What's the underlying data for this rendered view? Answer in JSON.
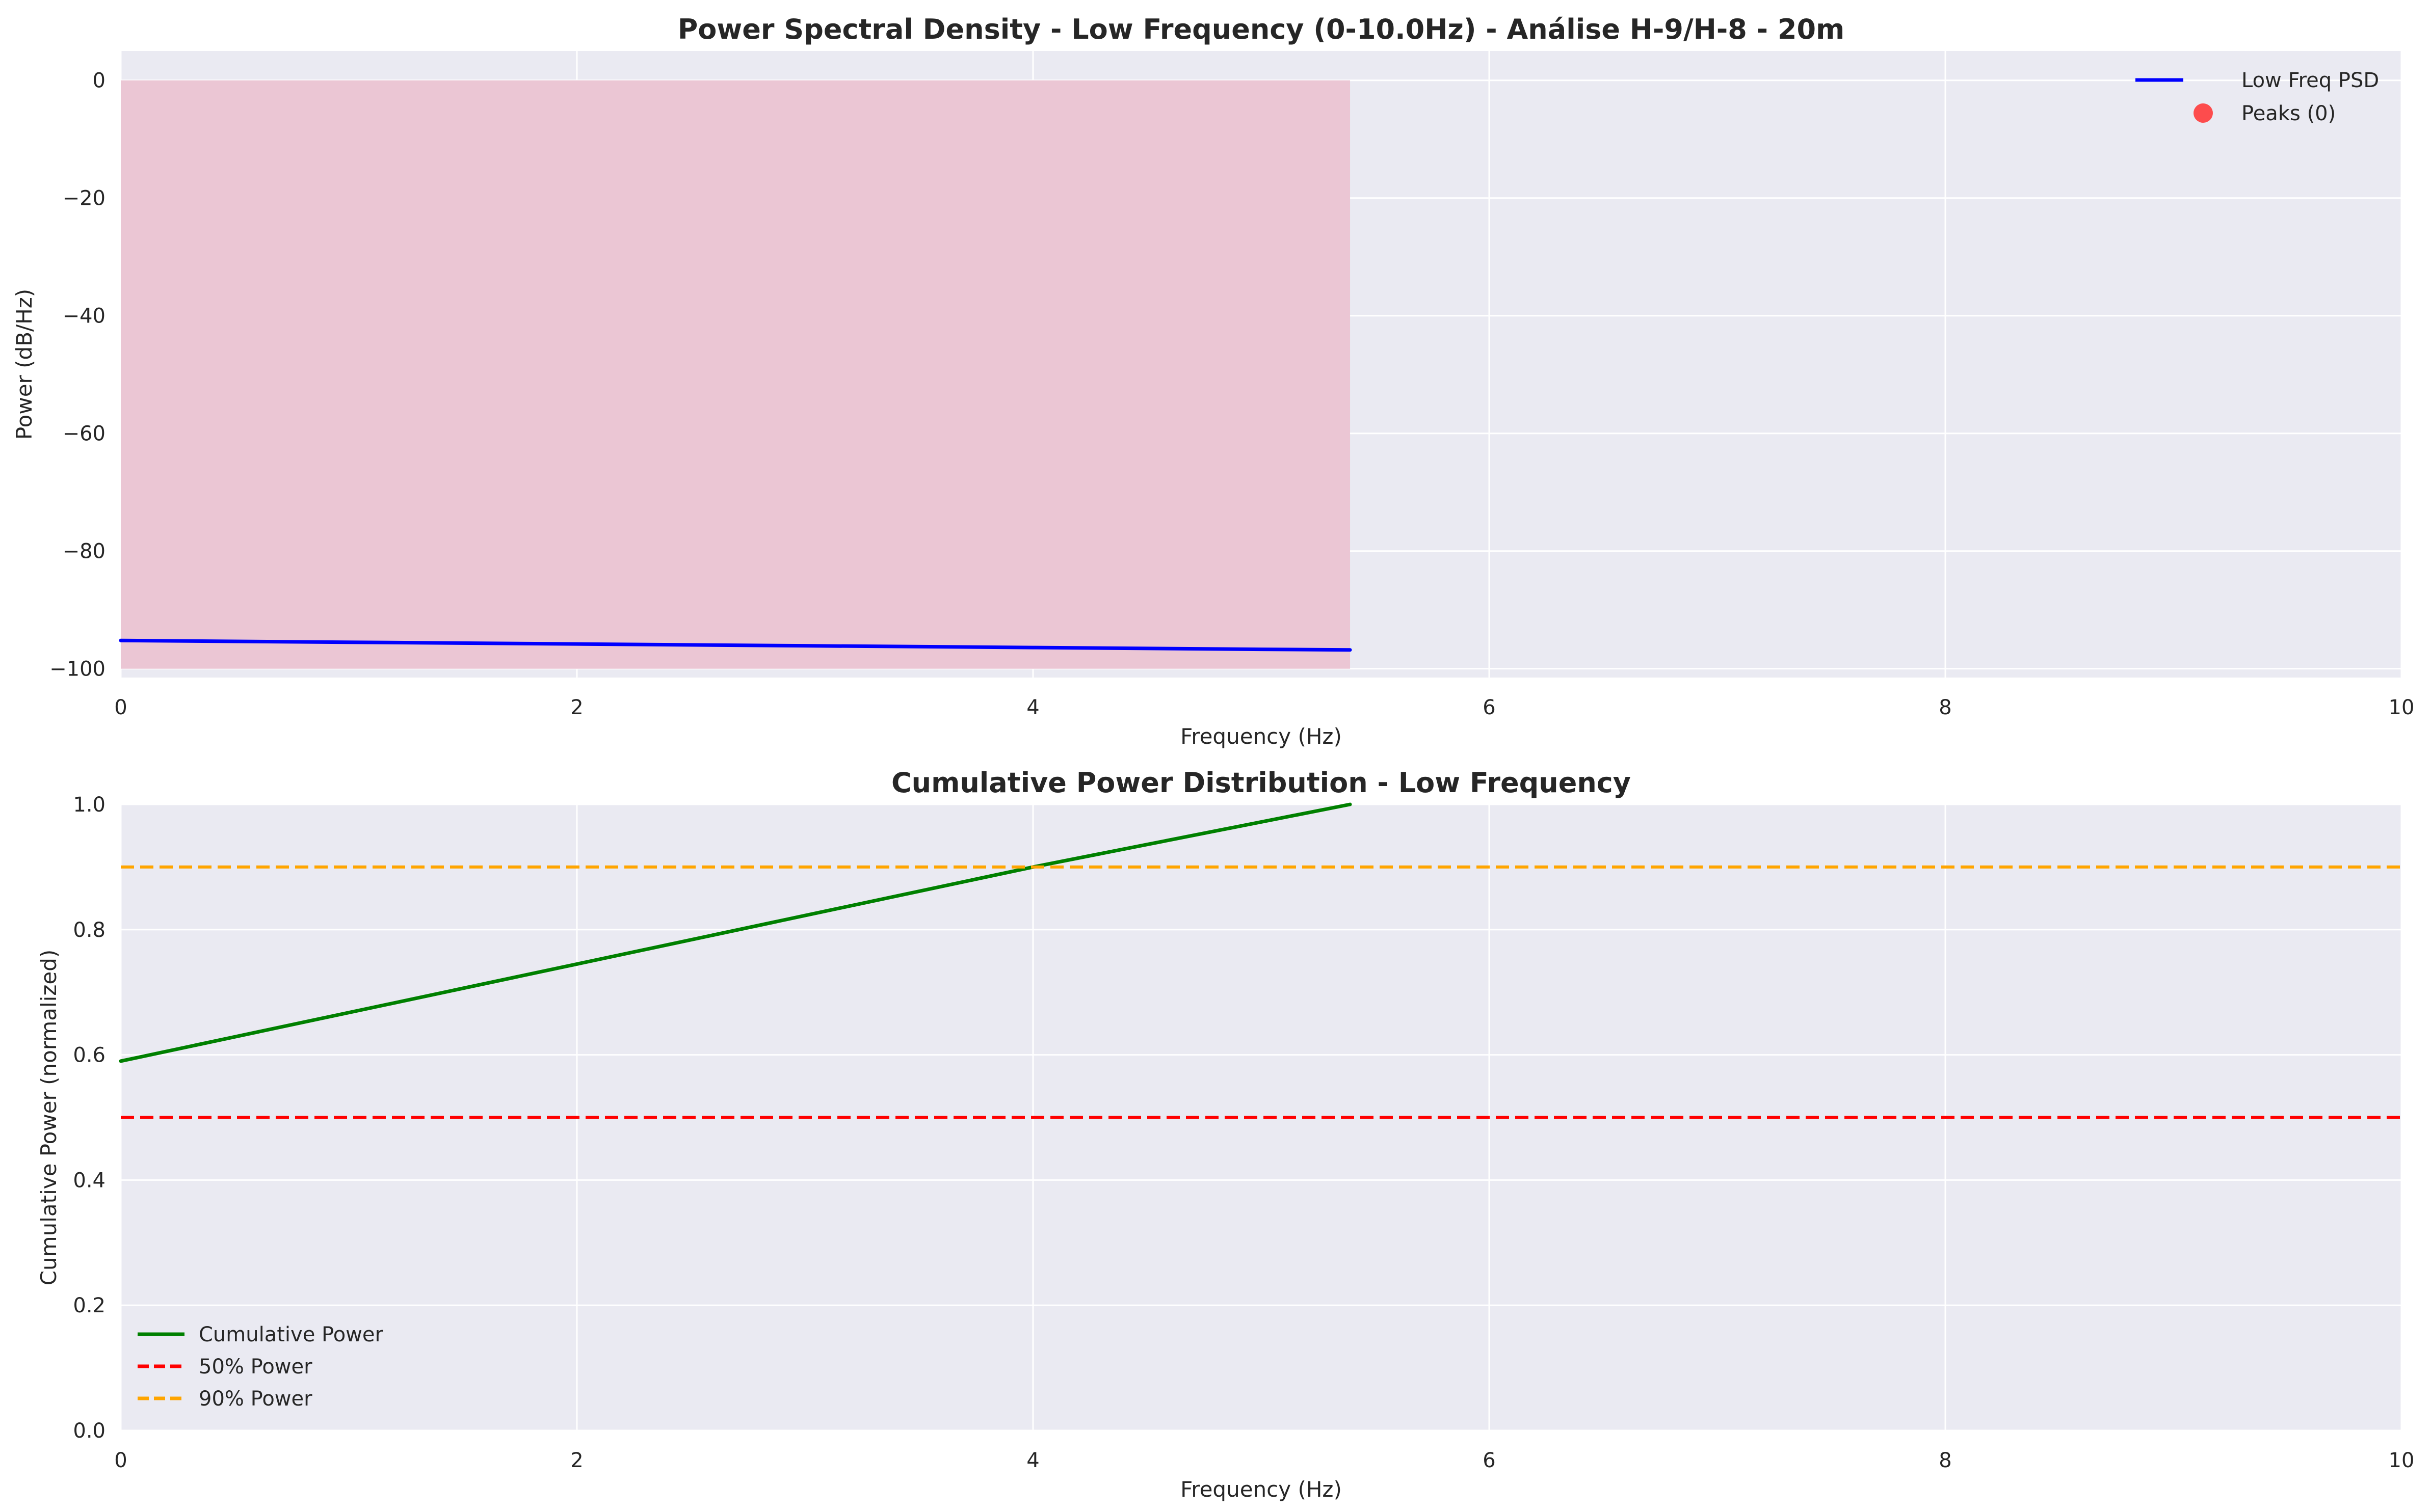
{
  "chart_data": [
    {
      "type": "line",
      "title": "Power Spectral Density - Low Frequency (0-10.0Hz) - Análise H-9/H-8 - 20m",
      "xlabel": "Frequency (Hz)",
      "ylabel": "Power (dB/Hz)",
      "xlim": [
        0,
        10
      ],
      "ylim": [
        -101.5,
        5
      ],
      "xticks": [
        0,
        2,
        4,
        6,
        8,
        10
      ],
      "xtick_labels": [
        "0",
        "2",
        "4",
        "6",
        "8",
        "10"
      ],
      "yticks": [
        0,
        -20,
        -40,
        -60,
        -80,
        -100
      ],
      "ytick_labels": [
        "0",
        "−20",
        "−40",
        "−60",
        "−80",
        "−100"
      ],
      "grid": true,
      "legend_position": "upper right",
      "shaded_region": {
        "x": [
          0,
          5.39
        ],
        "y": [
          -100,
          0
        ],
        "color": "#ebc6d4"
      },
      "series": [
        {
          "name": "Low Freq PSD",
          "type": "line",
          "color": "#0000ff",
          "x": [
            0,
            1,
            2,
            3,
            4,
            5,
            5.39
          ],
          "y": [
            -95.2,
            -95.5,
            -95.8,
            -96.1,
            -96.4,
            -96.7,
            -96.8
          ]
        },
        {
          "name": "Peaks (0)",
          "type": "scatter",
          "color": "#ff3b3b",
          "x": [],
          "y": []
        }
      ]
    },
    {
      "type": "line",
      "title": "Cumulative Power Distribution - Low Frequency",
      "xlabel": "Frequency (Hz)",
      "ylabel": "Cumulative Power (normalized)",
      "xlim": [
        0,
        10
      ],
      "ylim": [
        0,
        1
      ],
      "xticks": [
        0,
        2,
        4,
        6,
        8,
        10
      ],
      "xtick_labels": [
        "0",
        "2",
        "4",
        "6",
        "8",
        "10"
      ],
      "yticks": [
        0,
        0.2,
        0.4,
        0.6,
        0.8,
        1.0
      ],
      "ytick_labels": [
        "0.0",
        "0.2",
        "0.4",
        "0.6",
        "0.8",
        "1.0"
      ],
      "grid": true,
      "legend_position": "lower left",
      "series": [
        {
          "name": "Cumulative Power",
          "type": "line",
          "color": "#008000",
          "x": [
            0,
            2,
            4,
            5.39
          ],
          "y": [
            0.59,
            0.745,
            0.9,
            1.0
          ]
        },
        {
          "name": "50% Power",
          "type": "hline",
          "color": "#ff0000",
          "y": 0.5
        },
        {
          "name": "90% Power",
          "type": "hline",
          "color": "#ffa500",
          "y": 0.9
        }
      ]
    }
  ],
  "colors": {
    "axes_bg": "#eaeaf2",
    "grid": "#ffffff",
    "text": "#262626"
  }
}
